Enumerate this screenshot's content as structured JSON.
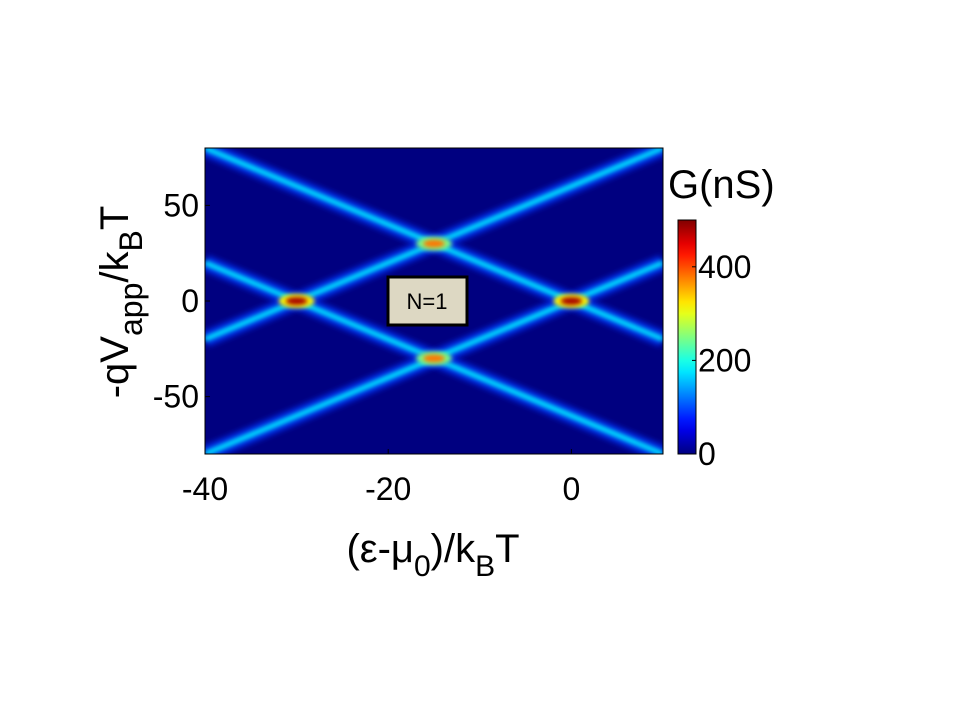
{
  "chart_data": {
    "type": "heatmap",
    "xlabel": [
      "(ε-μ",
      "0",
      ")/k",
      "B",
      "T"
    ],
    "ylabel": [
      "-qV",
      "app",
      "/k",
      "B",
      "T"
    ],
    "colorbar_title": "G(nS)",
    "annotation": "N=1",
    "xlim": [
      -40,
      10
    ],
    "ylim": [
      -80,
      80
    ],
    "xticks": [
      -40,
      -20,
      0
    ],
    "yticks": [
      -50,
      0,
      50
    ],
    "clim": [
      0,
      500
    ],
    "cticks": [
      0,
      200,
      400
    ],
    "colormap": "jet",
    "background_value": 0,
    "ridges": [
      {
        "x": [
          -40,
          10
        ],
        "y": [
          -20,
          80
        ],
        "value": 180
      },
      {
        "x": [
          -40,
          10
        ],
        "y": [
          20,
          -80
        ],
        "value": 180
      },
      {
        "x": [
          -40,
          10
        ],
        "y": [
          -80,
          20
        ],
        "value": 180
      },
      {
        "x": [
          -40,
          10
        ],
        "y": [
          80,
          -20
        ],
        "value": 180
      }
    ],
    "peaks": {
      "x": [
        -30,
        -15,
        -15,
        0
      ],
      "y": [
        0,
        30,
        -30,
        0
      ],
      "values": [
        480,
        380,
        380,
        480
      ]
    }
  }
}
